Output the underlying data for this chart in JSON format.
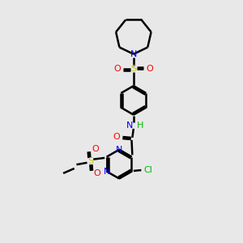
{
  "background_color": "#e8e8e8",
  "colors": {
    "N": "#0000ff",
    "O": "#ff0000",
    "S": "#cccc00",
    "Cl": "#00bb00",
    "H": "#00bb00",
    "C": "#000000"
  },
  "lw": 1.8,
  "figsize": [
    3.0,
    3.0
  ],
  "dpi": 100,
  "xlim": [
    0,
    10
  ],
  "ylim": [
    0,
    10
  ]
}
